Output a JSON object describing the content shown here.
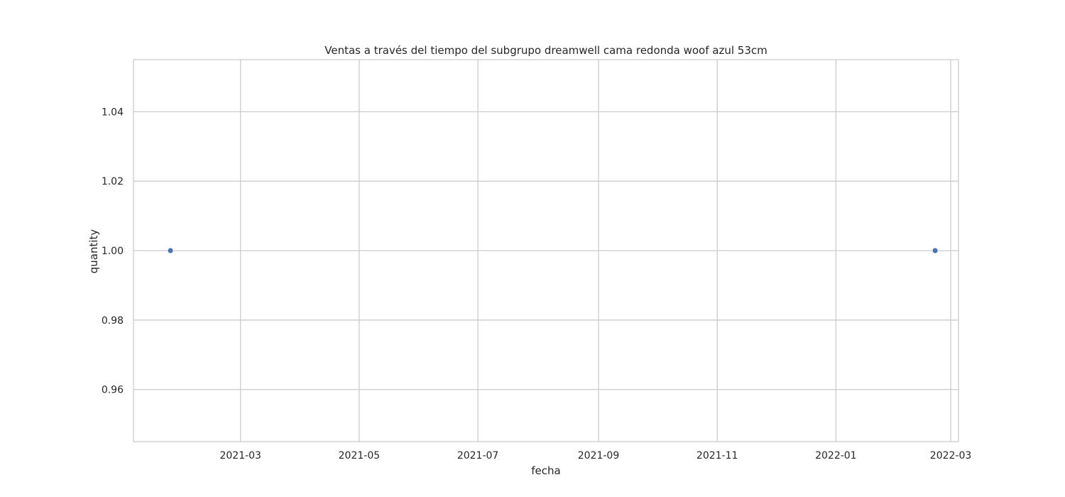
{
  "chart_data": {
    "type": "scatter",
    "title": "Ventas a través del tiempo del subgrupo dreamwell cama redonda woof azul 53cm",
    "xlabel": "fecha",
    "ylabel": "quantity",
    "x_is_date": true,
    "xlim": [
      "2021-01-05",
      "2022-03-05"
    ],
    "ylim": [
      0.945,
      1.055
    ],
    "x_ticks": [
      "2021-03-01",
      "2021-05-01",
      "2021-07-01",
      "2021-09-01",
      "2021-11-01",
      "2022-01-01",
      "2022-03-01"
    ],
    "x_tick_labels": [
      "2021-03",
      "2021-05",
      "2021-07",
      "2021-09",
      "2021-11",
      "2022-01",
      "2022-03"
    ],
    "y_ticks": [
      0.96,
      0.98,
      1.0,
      1.02,
      1.04
    ],
    "y_tick_labels": [
      "0.96",
      "0.98",
      "1.00",
      "1.02",
      "1.04"
    ],
    "grid": true,
    "series": [
      {
        "points": [
          {
            "x": "2021-01-24",
            "y": 1.0
          },
          {
            "x": "2022-02-21",
            "y": 1.0
          }
        ]
      }
    ],
    "colors": {
      "point": "#4c72b0",
      "grid": "#cccccc",
      "spine": "#cccccc",
      "text": "#262626",
      "background": "#ffffff"
    }
  }
}
